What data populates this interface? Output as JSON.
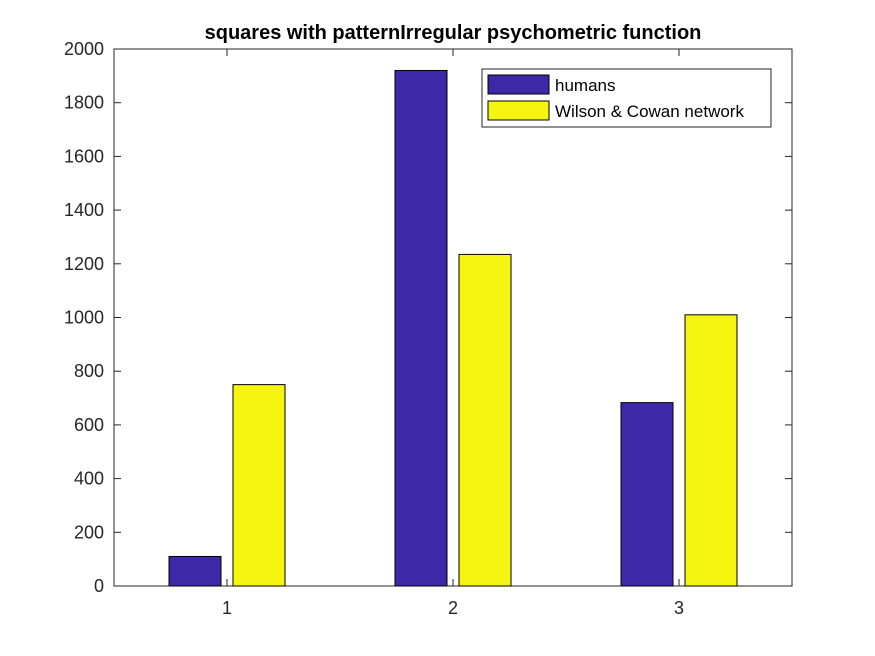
{
  "chart_data": {
    "type": "bar",
    "title": "squares with patternIrregular psychometric function",
    "xlabel": "",
    "ylabel": "",
    "categories": [
      "1",
      "2",
      "3"
    ],
    "ylim": [
      0,
      2000
    ],
    "yticks": [
      0,
      200,
      400,
      600,
      800,
      1000,
      1200,
      1400,
      1600,
      1800,
      2000
    ],
    "grid": false,
    "legend_position": "top-right",
    "series": [
      {
        "name": "humans",
        "color": "#3d28a8",
        "values": [
          110,
          1920,
          683
        ]
      },
      {
        "name": "Wilson & Cowan network",
        "color": "#f5f50f",
        "values": [
          750,
          1235,
          1010
        ]
      }
    ]
  }
}
